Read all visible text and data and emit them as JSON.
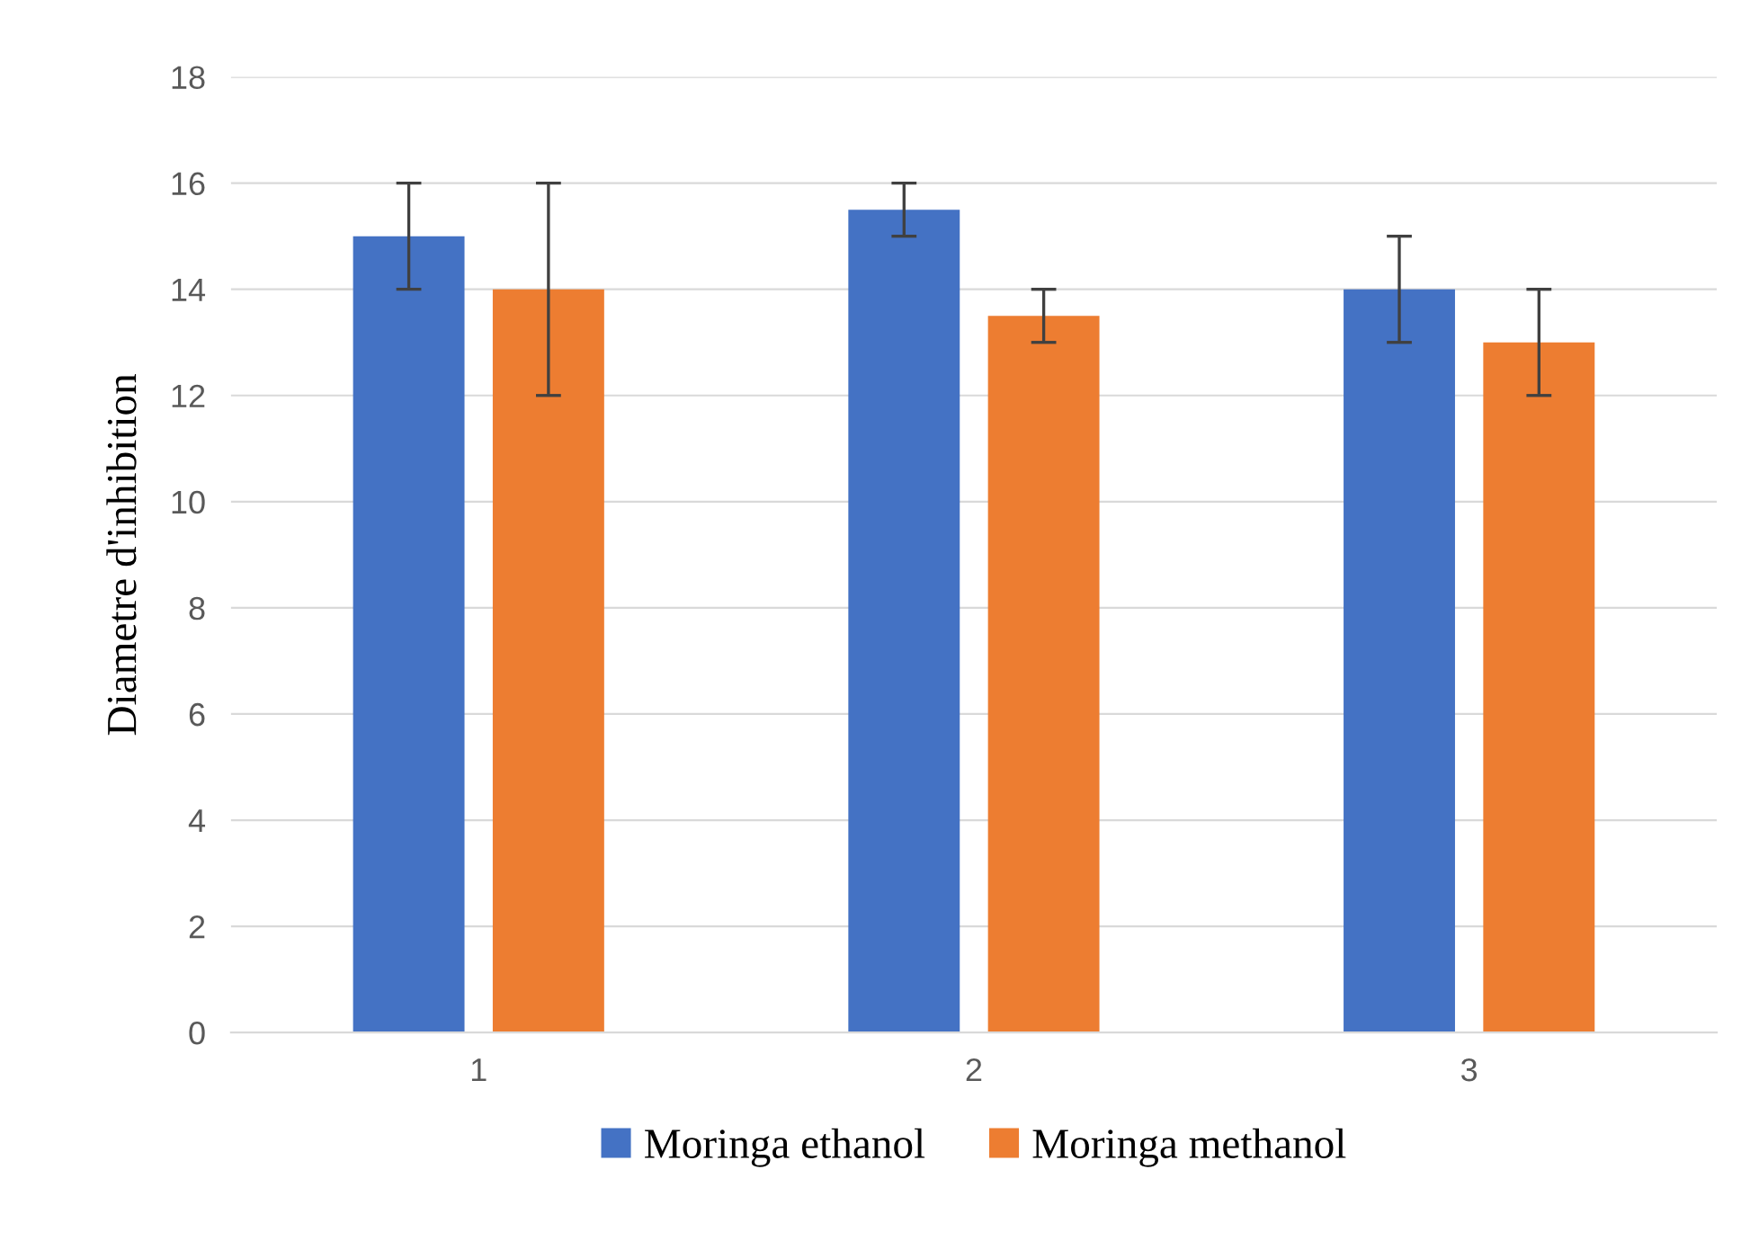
{
  "chart_data": {
    "type": "bar",
    "ylabel": "Diametre d'inhibition",
    "categories": [
      "1",
      "2",
      "3"
    ],
    "series": [
      {
        "name": "Moringa ethanol",
        "color": "#4472c4",
        "values": [
          15,
          15.5,
          14
        ],
        "errors": [
          1,
          0.5,
          1
        ]
      },
      {
        "name": "Moringa methanol",
        "color": "#ed7d31",
        "values": [
          14,
          13.5,
          13
        ],
        "errors": [
          2,
          0.5,
          1
        ]
      }
    ],
    "ylim": [
      0,
      18
    ],
    "yticks": [
      0,
      2,
      4,
      6,
      8,
      10,
      12,
      14,
      16,
      18
    ],
    "grid": "y",
    "legend": "bottom"
  }
}
